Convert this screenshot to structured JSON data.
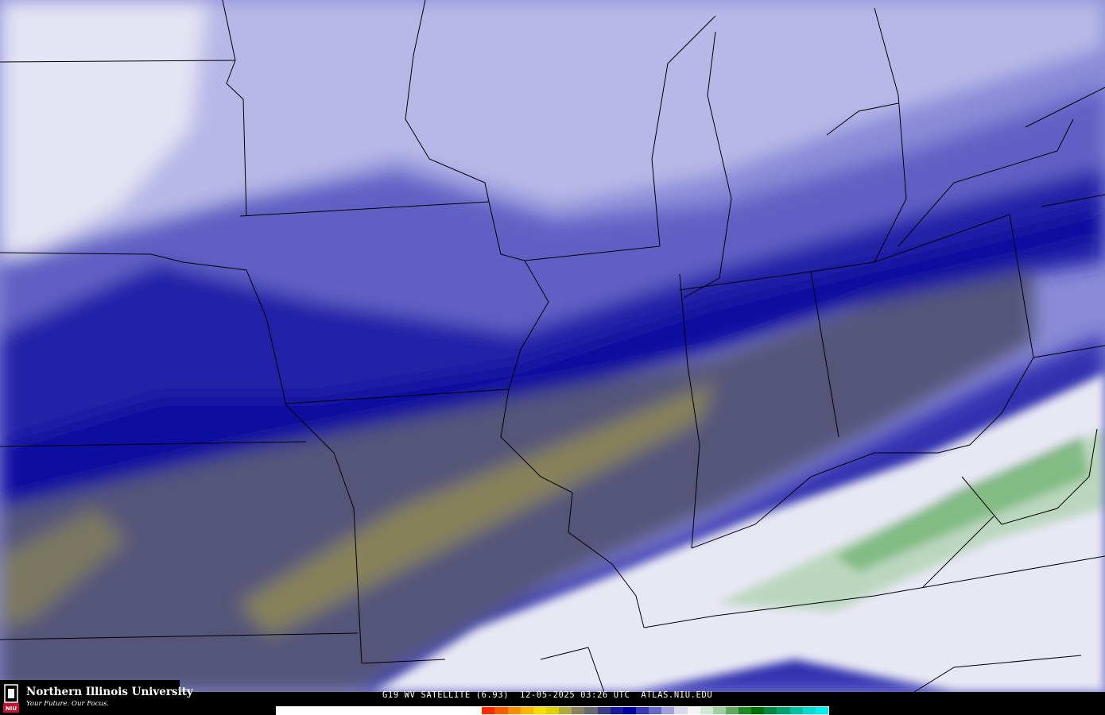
{
  "caption": {
    "product": "G19 WV SATELLITE (6.93)",
    "datetime": "12-05-2025 03:26 UTC",
    "site": "ATLAS.NIU.EDU"
  },
  "logo": {
    "name": "Northern Illinois University",
    "tagline": "Your Future. Our Focus.",
    "badge": "NIU"
  },
  "colorbar": {
    "colors": [
      "#ffffff",
      "#ffffff",
      "#ffffff",
      "#ffffff",
      "#ffffff",
      "#ffffff",
      "#ffffff",
      "#ffffff",
      "#ffffff",
      "#ffffff",
      "#ffffff",
      "#ffffff",
      "#ffffff",
      "#ffffff",
      "#ffffff",
      "#ffffff",
      "#ff2a00",
      "#ff5a00",
      "#ff8a00",
      "#ffb400",
      "#ffdc00",
      "#e0d000",
      "#b0a840",
      "#8a8060",
      "#6a6870",
      "#3c3c88",
      "#1a1aa0",
      "#0000a8",
      "#3838b8",
      "#6868c8",
      "#a0a0dc",
      "#d8d8f0",
      "#f4f4f4",
      "#d0e8d0",
      "#a0d0a0",
      "#60a860",
      "#208820",
      "#007000",
      "#008840",
      "#00a070",
      "#00c0a0",
      "#00dcd0",
      "#00f0f0"
    ]
  },
  "map_colors": {
    "light": "#c8c8ec",
    "medium": "#7070cc",
    "dark": "#2828a8",
    "navy": "#0808a0",
    "gray": "#5a5a78",
    "olive": "#8a8658",
    "white": "#f0f0f8",
    "green": "#208a30"
  }
}
